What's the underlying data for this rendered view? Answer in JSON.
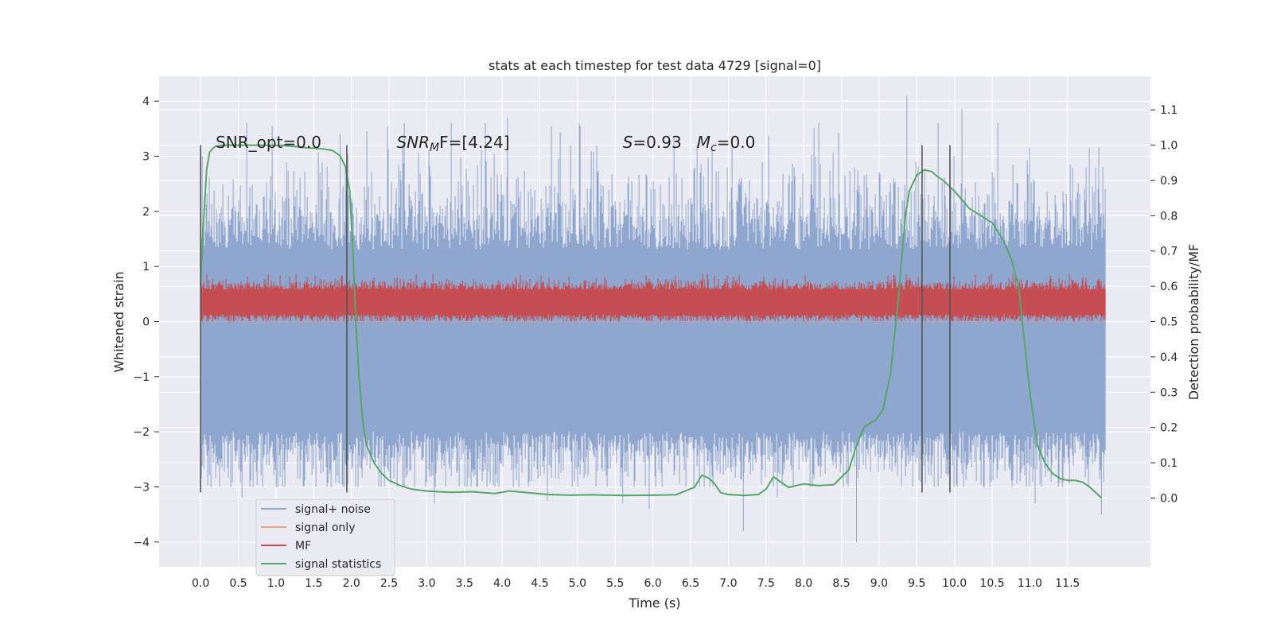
{
  "chart_data": {
    "type": "line",
    "title": "stats at each timestep for test data 4729 [signal=0]",
    "xlabel": "Time (s)",
    "ylabel_left": "Whitened strain",
    "ylabel_right": "Detection probability/MF",
    "xlim": [
      -0.55,
      12.6
    ],
    "ylim_left": [
      -4.45,
      4.45
    ],
    "ylim_right": [
      -0.195,
      1.195
    ],
    "grid": true,
    "legend_position": "lower-left",
    "xticks": [
      "0.0",
      "0.5",
      "1.0",
      "1.5",
      "2.0",
      "2.5",
      "3.0",
      "3.5",
      "4.0",
      "4.5",
      "5.0",
      "5.5",
      "6.0",
      "6.5",
      "7.0",
      "7.5",
      "8.0",
      "8.5",
      "9.0",
      "9.5",
      "10.0",
      "10.5",
      "11.0",
      "11.5"
    ],
    "xtick_values": [
      0,
      0.5,
      1,
      1.5,
      2,
      2.5,
      3,
      3.5,
      4,
      4.5,
      5,
      5.5,
      6,
      6.5,
      7,
      7.5,
      8,
      8.5,
      9,
      9.5,
      10,
      10.5,
      11,
      11.5
    ],
    "yticks_left": [
      "−4",
      "−3",
      "−2",
      "−1",
      "0",
      "1",
      "2",
      "3",
      "4"
    ],
    "ytick_values_left": [
      -4,
      -3,
      -2,
      -1,
      0,
      1,
      2,
      3,
      4
    ],
    "yticks_right": [
      "0.0",
      "0.1",
      "0.2",
      "0.3",
      "0.4",
      "0.5",
      "0.6",
      "0.7",
      "0.8",
      "0.9",
      "1.0",
      "1.1"
    ],
    "ytick_values_right": [
      0,
      0.1,
      0.2,
      0.3,
      0.4,
      0.5,
      0.6,
      0.7,
      0.8,
      0.9,
      1.0,
      1.1
    ],
    "annotations": [
      {
        "x": 0.2,
        "y": 3.15,
        "text": "SNR_opt=0.0"
      },
      {
        "x": 2.6,
        "y": 3.15,
        "text_parts": [
          "SNR",
          "M",
          "F=[4.24]"
        ]
      },
      {
        "x": 5.6,
        "y": 3.15,
        "text_parts": [
          "S",
          "=0.93   ",
          "M",
          "c",
          "=0.0"
        ]
      }
    ],
    "vertical_lines": {
      "x": [
        0.0,
        1.94,
        9.57,
        9.94
      ],
      "y_range": [
        -3.1,
        3.2
      ]
    },
    "series": [
      {
        "name": "signal+ noise",
        "axis": "left",
        "color": "#8fa6cf",
        "style": "noise",
        "x_range": [
          0,
          12.0
        ],
        "core_band": [
          -2.0,
          1.3
        ],
        "envelope": [
          -3.5,
          4.1
        ],
        "spikes": [
          {
            "x": 0.55,
            "y": -3.2
          },
          {
            "x": 0.95,
            "y": 3.55
          },
          {
            "x": 1.85,
            "y": 3.4
          },
          {
            "x": 3.1,
            "y": -3.3
          },
          {
            "x": 4.07,
            "y": 3.7
          },
          {
            "x": 4.6,
            "y": -3.25
          },
          {
            "x": 5.6,
            "y": -3.3
          },
          {
            "x": 5.95,
            "y": -3.4
          },
          {
            "x": 7.2,
            "y": -3.8
          },
          {
            "x": 7.65,
            "y": -3.2
          },
          {
            "x": 8.7,
            "y": -4.0
          },
          {
            "x": 9.37,
            "y": 4.1
          },
          {
            "x": 10.1,
            "y": 3.85
          },
          {
            "x": 11.07,
            "y": -3.3
          },
          {
            "x": 11.95,
            "y": -3.5
          }
        ]
      },
      {
        "name": "signal only",
        "axis": "left",
        "color": "#e8a48b",
        "style": "flat",
        "x_range": [
          0,
          12.0
        ],
        "y": 0.0
      },
      {
        "name": "MF",
        "axis": "right",
        "color": "#c44e52",
        "style": "noise",
        "x_range": [
          0,
          12.0
        ],
        "band": [
          0.52,
          0.59
        ],
        "envelope": [
          0.5,
          0.635
        ]
      },
      {
        "name": "signal statistics",
        "axis": "right",
        "color": "#55a868",
        "style": "line",
        "x": [
          0.0,
          0.03,
          0.08,
          0.12,
          0.16,
          0.2,
          0.3,
          0.5,
          0.8,
          1.1,
          1.4,
          1.6,
          1.75,
          1.85,
          1.92,
          1.98,
          2.02,
          2.06,
          2.1,
          2.15,
          2.2,
          2.3,
          2.4,
          2.5,
          2.65,
          2.8,
          3.0,
          3.3,
          3.6,
          3.9,
          4.1,
          4.35,
          4.6,
          4.9,
          5.2,
          5.6,
          6.0,
          6.3,
          6.55,
          6.65,
          6.75,
          6.82,
          6.9,
          7.0,
          7.2,
          7.4,
          7.5,
          7.6,
          7.7,
          7.8,
          7.9,
          8.0,
          8.2,
          8.4,
          8.6,
          8.7,
          8.8,
          8.9,
          8.95,
          9.05,
          9.15,
          9.2,
          9.25,
          9.3,
          9.35,
          9.4,
          9.5,
          9.6,
          9.7,
          9.75,
          9.85,
          10.0,
          10.2,
          10.35,
          10.5,
          10.65,
          10.75,
          10.85,
          11.0,
          11.1,
          11.2,
          11.3,
          11.4,
          11.5,
          11.6,
          11.7,
          11.8,
          11.9,
          11.95
        ],
        "y": [
          0.6,
          0.75,
          0.93,
          0.98,
          0.99,
          0.997,
          1.0,
          1.0,
          1.0,
          0.999,
          0.993,
          0.99,
          0.985,
          0.97,
          0.94,
          0.87,
          0.7,
          0.5,
          0.35,
          0.22,
          0.15,
          0.1,
          0.07,
          0.05,
          0.035,
          0.025,
          0.02,
          0.016,
          0.018,
          0.013,
          0.02,
          0.015,
          0.01,
          0.008,
          0.009,
          0.007,
          0.008,
          0.009,
          0.03,
          0.065,
          0.055,
          0.04,
          0.015,
          0.01,
          0.007,
          0.01,
          0.025,
          0.06,
          0.045,
          0.03,
          0.035,
          0.04,
          0.035,
          0.038,
          0.08,
          0.15,
          0.2,
          0.215,
          0.22,
          0.25,
          0.35,
          0.45,
          0.55,
          0.68,
          0.8,
          0.87,
          0.915,
          0.93,
          0.925,
          0.915,
          0.9,
          0.87,
          0.82,
          0.8,
          0.78,
          0.73,
          0.68,
          0.6,
          0.3,
          0.15,
          0.1,
          0.07,
          0.055,
          0.05,
          0.05,
          0.045,
          0.03,
          0.01,
          0.0
        ]
      }
    ]
  }
}
